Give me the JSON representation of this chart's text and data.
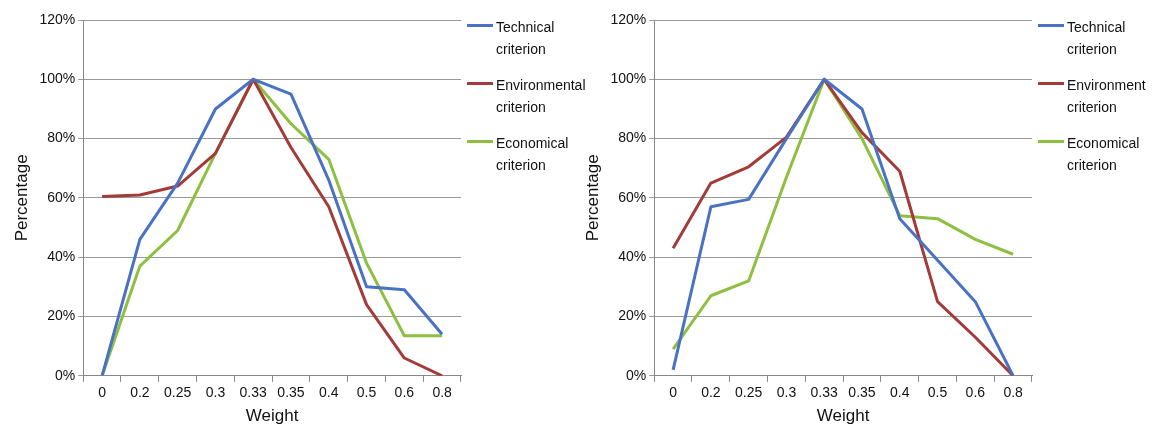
{
  "chart_data": [
    {
      "type": "line",
      "xlabel": "Weight",
      "ylabel": "Percentage",
      "categories": [
        "0",
        "0.2",
        "0.25",
        "0.3",
        "0.33",
        "0.35",
        "0.4",
        "0.5",
        "0.6",
        "0.8"
      ],
      "series": [
        {
          "name": "Technical criterion",
          "color": "#4a72c4",
          "values": [
            0,
            46,
            65,
            90,
            100,
            95,
            66,
            30,
            29,
            14
          ]
        },
        {
          "name": "Environmental criterion",
          "color": "#a33b38",
          "values": [
            60.5,
            61,
            64,
            75,
            100,
            77,
            57,
            24,
            6,
            0
          ]
        },
        {
          "name": "Economical criterion",
          "color": "#8dc040",
          "values": [
            0,
            37,
            49,
            75,
            100,
            85,
            73,
            38,
            13.5,
            13.5
          ]
        }
      ],
      "ylim": [
        0,
        120
      ],
      "yticks": [
        {
          "value": 0,
          "label": "0%"
        },
        {
          "value": 20,
          "label": "20%"
        },
        {
          "value": 40,
          "label": "40%"
        },
        {
          "value": 60,
          "label": "60%"
        },
        {
          "value": 80,
          "label": "80%"
        },
        {
          "value": 100,
          "label": "100%"
        },
        {
          "value": 120,
          "label": "120%"
        }
      ],
      "grid": "y",
      "legend": "top right",
      "marker": "none",
      "line_style": "solid"
    },
    {
      "type": "line",
      "xlabel": "Weight",
      "ylabel": "Percentage",
      "categories": [
        "0",
        "0.2",
        "0.25",
        "0.3",
        "0.33",
        "0.35",
        "0.4",
        "0.5",
        "0.6",
        "0.8"
      ],
      "series": [
        {
          "name": "Technical criterion",
          "color": "#4a72c4",
          "values": [
            2,
            57,
            59.5,
            80,
            100,
            90,
            53,
            39,
            25,
            0
          ]
        },
        {
          "name": "Environment criterion",
          "color": "#a33b38",
          "values": [
            43,
            65,
            70.5,
            80.5,
            100,
            82,
            69,
            25,
            13,
            0
          ]
        },
        {
          "name": "Economical criterion",
          "color": "#8dc040",
          "values": [
            9,
            27,
            32,
            67,
            100,
            80,
            54,
            53,
            46,
            41
          ]
        }
      ],
      "ylim": [
        0,
        120
      ],
      "yticks": [
        {
          "value": 0,
          "label": "0%"
        },
        {
          "value": 20,
          "label": "20%"
        },
        {
          "value": 40,
          "label": "40%"
        },
        {
          "value": 60,
          "label": "60%"
        },
        {
          "value": 80,
          "label": "80%"
        },
        {
          "value": 100,
          "label": "100%"
        },
        {
          "value": 120,
          "label": "120%"
        }
      ],
      "grid": "y",
      "legend": "top right",
      "marker": "none",
      "line_style": "solid"
    }
  ]
}
